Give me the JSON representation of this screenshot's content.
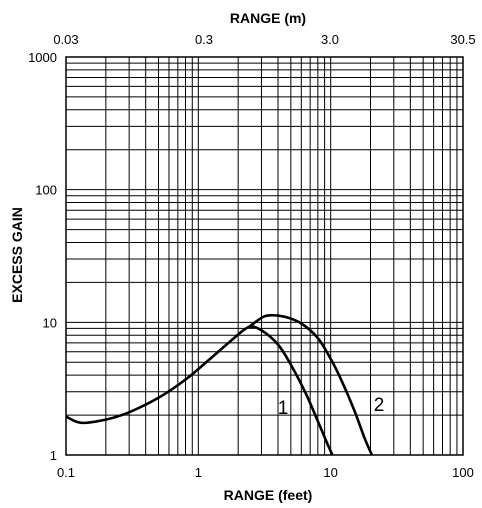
{
  "chart_data": {
    "type": "line",
    "title": "",
    "xlabel": "RANGE (feet)",
    "x2label": "RANGE (m)",
    "ylabel": "EXCESS GAIN",
    "xscale": "log",
    "yscale": "log",
    "xlim": [
      0.1,
      100
    ],
    "ylim": [
      1,
      1000
    ],
    "grid": true,
    "x_ticks": [
      "0.1",
      "1",
      "10",
      "100"
    ],
    "x2_ticks": [
      "0.03",
      "0.3",
      "3.0",
      "30.5"
    ],
    "y_ticks": [
      "1",
      "10",
      "100",
      "1000"
    ],
    "series": [
      {
        "name": "1",
        "color": "#000000",
        "x": [
          0.1,
          0.13,
          0.2,
          0.3,
          0.5,
          0.8,
          1.2,
          1.8,
          2.4,
          3.0,
          4.0,
          5.0,
          6.5,
          8.0,
          9.5,
          10.3
        ],
        "y": [
          1.95,
          1.75,
          1.85,
          2.1,
          2.7,
          3.7,
          5.2,
          7.4,
          9.2,
          8.7,
          6.8,
          4.8,
          2.9,
          1.8,
          1.2,
          0.98
        ]
      },
      {
        "name": "2",
        "color": "#000000",
        "x": [
          2.4,
          3.0,
          3.5,
          4.5,
          6.0,
          8.0,
          10.0,
          12.0,
          15.0,
          18.0,
          20.5
        ],
        "y": [
          9.2,
          10.8,
          11.3,
          11.0,
          9.8,
          7.6,
          5.3,
          3.7,
          2.2,
          1.35,
          0.98
        ]
      }
    ],
    "annotations": [
      "1",
      "2"
    ]
  }
}
